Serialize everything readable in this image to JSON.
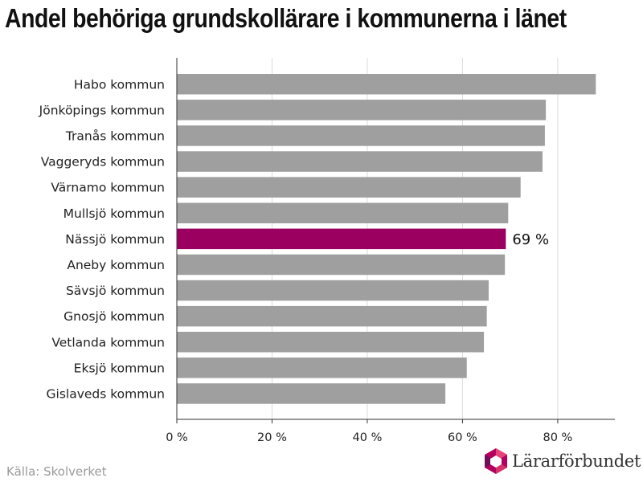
{
  "chart_data": {
    "type": "bar",
    "orientation": "horizontal",
    "title": "Andel behöriga grundskollärare i kommunerna i länet",
    "categories": [
      "Habo kommun",
      "Jönköpings kommun",
      "Tranås kommun",
      "Vaggeryds kommun",
      "Värnamo kommun",
      "Mullsjö kommun",
      "Nässjö kommun",
      "Aneby kommun",
      "Sävsjö kommun",
      "Gnosjö kommun",
      "Vetlanda kommun",
      "Eksjö kommun",
      "Gislaveds kommun"
    ],
    "values": [
      88,
      77.5,
      77.3,
      76.8,
      72.2,
      69.6,
      69.1,
      68.9,
      65.5,
      65.1,
      64.5,
      60.9,
      56.4
    ],
    "highlight": {
      "category": "Nässjö kommun",
      "label": "69 %",
      "color": "#9b0061"
    },
    "bar_color": "#9f9f9f",
    "xlim": [
      0,
      92
    ],
    "xticks": [
      0,
      20,
      40,
      60,
      80
    ],
    "xtick_labels": [
      "0 %",
      "20 %",
      "40 %",
      "60 %",
      "80 %"
    ],
    "grid": true
  },
  "source": "Källa: Skolverket",
  "logo": {
    "text": "Lärarförbundet",
    "icon": "lararforbundet-logo-icon"
  }
}
